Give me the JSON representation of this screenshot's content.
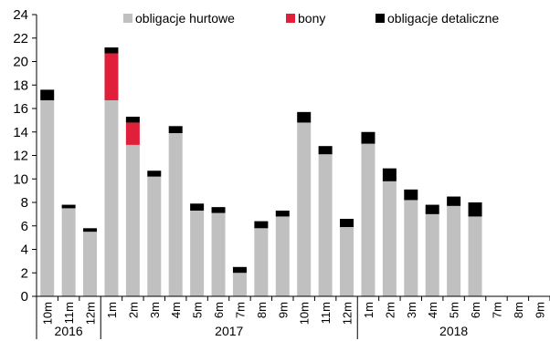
{
  "chart_data": {
    "type": "bar",
    "stacked": true,
    "title": "",
    "xlabel": "",
    "ylabel": "",
    "ylim": [
      0,
      24
    ],
    "yticks": [
      0,
      2,
      4,
      6,
      8,
      10,
      12,
      14,
      16,
      18,
      20,
      22,
      24
    ],
    "grid": false,
    "legend_position": "top",
    "categories": [
      "10m",
      "11m",
      "12m",
      "1m",
      "2m",
      "3m",
      "4m",
      "5m",
      "6m",
      "7m",
      "8m",
      "9m",
      "10m",
      "11m",
      "12m",
      "1m",
      "2m",
      "3m",
      "4m",
      "5m",
      "6m",
      "7m",
      "8m",
      "9m"
    ],
    "groups": [
      {
        "label": "2016",
        "start": 0,
        "end": 2
      },
      {
        "label": "2017",
        "start": 3,
        "end": 14
      },
      {
        "label": "2018",
        "start": 15,
        "end": 23
      }
    ],
    "series": [
      {
        "name": "obligacje hurtowe",
        "color": "#c0c0c0",
        "values": [
          16.7,
          7.5,
          5.5,
          16.7,
          12.9,
          10.2,
          13.9,
          7.3,
          7.1,
          2.0,
          5.8,
          6.8,
          14.8,
          12.1,
          5.9,
          13.0,
          9.8,
          8.2,
          7.0,
          7.7,
          6.8,
          0,
          0,
          0
        ]
      },
      {
        "name": "bony",
        "color": "#e0203a",
        "values": [
          0,
          0,
          0,
          4.0,
          1.9,
          0,
          0,
          0,
          0,
          0,
          0,
          0,
          0,
          0,
          0,
          0,
          0,
          0,
          0,
          0,
          0,
          0,
          0,
          0
        ]
      },
      {
        "name": "obligacje detaliczne",
        "color": "#000000",
        "values": [
          0.9,
          0.3,
          0.3,
          0.5,
          0.5,
          0.5,
          0.6,
          0.6,
          0.5,
          0.5,
          0.6,
          0.5,
          0.9,
          0.7,
          0.7,
          1.0,
          1.1,
          0.9,
          0.8,
          0.8,
          1.2,
          0,
          0,
          0
        ]
      }
    ]
  }
}
